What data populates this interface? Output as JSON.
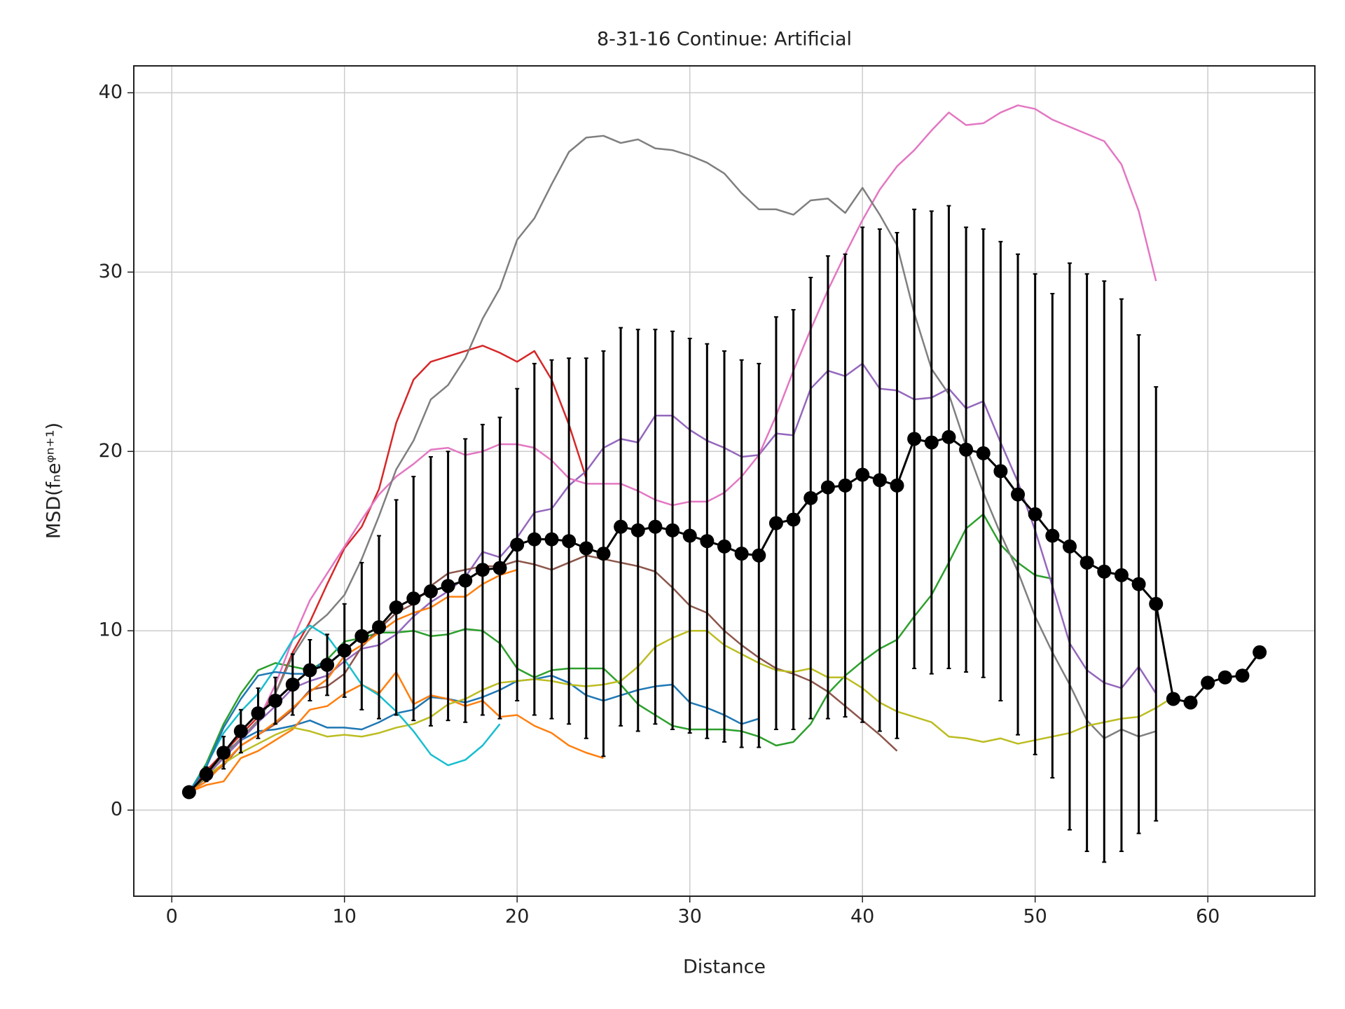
{
  "chart_data": {
    "type": "line",
    "title": "8-31-16 Continue: Artificial",
    "x_label": "Distance",
    "y_label": "MSD(fₙeᵠⁿ⁺¹)",
    "xlim": [
      -2.2,
      66.2
    ],
    "ylim": [
      -4.8,
      41.5
    ],
    "xticks": [
      0,
      10,
      20,
      30,
      40,
      50,
      60
    ],
    "yticks": [
      0,
      10,
      20,
      30,
      40
    ],
    "grid": true,
    "x": [
      1,
      2,
      3,
      4,
      5,
      6,
      7,
      8,
      9,
      10,
      11,
      12,
      13,
      14,
      15,
      16,
      17,
      18,
      19,
      20,
      21,
      22,
      23,
      24,
      25,
      26,
      27,
      28,
      29,
      30,
      31,
      32,
      33,
      34,
      35,
      36,
      37,
      38,
      39,
      40,
      41,
      42,
      43,
      44,
      45,
      46,
      47,
      48,
      49,
      50,
      51,
      52,
      53,
      54,
      55,
      56,
      57,
      58,
      59,
      60,
      61,
      62,
      63
    ],
    "series": [
      {
        "color": "#1f77b4",
        "values": [
          1.0,
          2.2,
          3.2,
          3.9,
          4.4,
          4.5,
          4.7,
          5.0,
          4.6,
          4.6,
          4.5,
          4.9,
          5.4,
          5.6,
          6.3,
          6.2,
          6.0,
          6.3,
          6.7,
          7.2,
          7.3,
          7.5,
          7.1,
          6.4,
          6.1,
          6.4,
          6.7,
          6.9,
          7.0,
          6.0,
          5.7,
          5.3,
          4.8,
          5.1,
          null,
          null,
          null,
          null,
          null,
          null,
          null,
          null,
          null,
          null,
          null,
          null,
          null,
          null,
          null,
          null,
          null,
          null,
          null,
          null,
          null,
          null,
          null,
          null,
          null,
          null,
          null,
          null,
          null
        ]
      },
      {
        "color": "#ff7f0e",
        "values": [
          1.0,
          1.4,
          1.6,
          2.9,
          3.3,
          3.9,
          4.5,
          5.6,
          5.8,
          6.5,
          7.0,
          6.5,
          7.7,
          5.9,
          6.4,
          6.2,
          5.8,
          6.1,
          5.2,
          5.3,
          4.7,
          4.3,
          3.6,
          3.2,
          2.9,
          null,
          null,
          null,
          null,
          null,
          null,
          null,
          null,
          null,
          null,
          null,
          null,
          null,
          null,
          null,
          null,
          null,
          null,
          null,
          null,
          null,
          null,
          null,
          null,
          null,
          null,
          null,
          null,
          null,
          null,
          null,
          null,
          null,
          null,
          null,
          null,
          null,
          null
        ]
      },
      {
        "color": "#2ca02c",
        "values": [
          1.0,
          2.6,
          4.8,
          6.5,
          7.8,
          8.2,
          8.0,
          7.8,
          8.4,
          9.4,
          9.6,
          9.9,
          9.9,
          10.0,
          9.7,
          9.8,
          10.1,
          10.0,
          9.3,
          7.9,
          7.4,
          7.8,
          7.9,
          7.9,
          7.9,
          7.0,
          5.9,
          5.3,
          4.7,
          4.5,
          4.5,
          4.5,
          4.4,
          4.1,
          3.6,
          3.8,
          4.8,
          6.5,
          7.5,
          8.3,
          9.0,
          9.5,
          10.8,
          12.0,
          13.8,
          15.7,
          16.5,
          14.8,
          13.8,
          13.1,
          12.9,
          null,
          null,
          null,
          null,
          null,
          null,
          null,
          null,
          null,
          null,
          null,
          null
        ]
      },
      {
        "color": "#d62728",
        "values": [
          1.0,
          2.2,
          3.2,
          4.2,
          5.2,
          6.5,
          8.8,
          10.5,
          12.6,
          14.6,
          15.8,
          17.9,
          21.6,
          24.0,
          25.0,
          25.3,
          25.6,
          25.9,
          25.5,
          25.0,
          25.6,
          24.0,
          21.5,
          18.5,
          null,
          null,
          null,
          null,
          null,
          null,
          null,
          null,
          null,
          null,
          null,
          null,
          null,
          null,
          null,
          null,
          null,
          null,
          null,
          null,
          null,
          null,
          null,
          null,
          null,
          null,
          null,
          null,
          null,
          null,
          null,
          null,
          null,
          null,
          null,
          null,
          null,
          null,
          null
        ]
      },
      {
        "color": "#9467bd",
        "values": [
          1.0,
          1.9,
          2.9,
          3.9,
          4.9,
          5.8,
          6.8,
          7.2,
          7.5,
          8.3,
          9.0,
          9.2,
          9.8,
          10.8,
          11.6,
          12.2,
          13.0,
          14.4,
          14.1,
          15.2,
          16.6,
          16.8,
          18.1,
          18.9,
          20.2,
          20.7,
          20.5,
          22.0,
          22.0,
          21.2,
          20.6,
          20.2,
          19.7,
          19.8,
          21.0,
          20.9,
          23.5,
          24.5,
          24.2,
          24.9,
          23.5,
          23.4,
          22.9,
          23.0,
          23.5,
          22.4,
          22.8,
          20.5,
          18.3,
          15.6,
          12.5,
          9.3,
          7.8,
          7.1,
          6.8,
          8.0,
          6.5,
          null,
          null,
          null,
          null,
          null,
          null
        ]
      },
      {
        "color": "#8c564b",
        "values": [
          1.0,
          1.8,
          2.5,
          3.6,
          4.2,
          4.8,
          5.6,
          6.7,
          6.9,
          7.6,
          9.1,
          10.1,
          11.0,
          11.5,
          12.5,
          13.2,
          13.4,
          13.6,
          13.6,
          13.9,
          13.7,
          13.4,
          13.8,
          14.2,
          14.0,
          13.8,
          13.6,
          13.3,
          12.4,
          11.4,
          11.0,
          10.0,
          9.2,
          8.5,
          7.9,
          7.6,
          7.2,
          6.6,
          5.8,
          5.0,
          4.2,
          3.3,
          null,
          null,
          null,
          null,
          null,
          null,
          null,
          null,
          null,
          null,
          null,
          null,
          null,
          null,
          null,
          null,
          null,
          null,
          null,
          null,
          null
        ]
      },
      {
        "color": "#e377c2",
        "values": [
          1.0,
          2.0,
          3.0,
          4.0,
          5.0,
          7.0,
          9.5,
          11.7,
          13.2,
          14.7,
          16.2,
          17.6,
          18.6,
          19.3,
          20.1,
          20.2,
          19.8,
          20.0,
          20.4,
          20.4,
          20.2,
          19.5,
          18.5,
          18.2,
          18.2,
          18.2,
          17.8,
          17.3,
          17.0,
          17.2,
          17.2,
          17.7,
          18.6,
          19.8,
          22.0,
          24.5,
          26.8,
          29.0,
          31.0,
          32.9,
          34.6,
          35.9,
          36.8,
          37.9,
          38.9,
          38.2,
          38.3,
          38.9,
          39.3,
          39.1,
          38.5,
          38.1,
          37.7,
          37.3,
          36.0,
          33.4,
          29.5,
          null,
          null,
          null,
          null,
          null,
          null
        ]
      },
      {
        "color": "#7f7f7f",
        "values": [
          1.0,
          2.0,
          3.0,
          4.0,
          5.0,
          6.5,
          8.6,
          10.1,
          10.9,
          12.0,
          14.0,
          16.4,
          19.0,
          20.6,
          22.9,
          23.7,
          25.2,
          27.4,
          29.1,
          31.8,
          33.0,
          34.9,
          36.7,
          37.5,
          37.6,
          37.2,
          37.4,
          36.9,
          36.8,
          36.5,
          36.1,
          35.5,
          34.4,
          33.5,
          33.5,
          33.2,
          34.0,
          34.1,
          33.3,
          34.7,
          33.2,
          31.5,
          27.7,
          24.6,
          23.2,
          20.3,
          17.7,
          15.4,
          13.3,
          10.8,
          8.8,
          7.0,
          5.0,
          4.0,
          4.5,
          4.1,
          4.4,
          null,
          null,
          null,
          null,
          null,
          null
        ]
      },
      {
        "color": "#bcbd22",
        "values": [
          1.0,
          1.9,
          2.6,
          3.2,
          3.7,
          4.2,
          4.6,
          4.4,
          4.1,
          4.2,
          4.1,
          4.3,
          4.6,
          4.8,
          5.2,
          5.9,
          6.2,
          6.7,
          7.1,
          7.2,
          7.3,
          7.2,
          7.0,
          6.9,
          7.0,
          7.2,
          8.0,
          9.1,
          9.6,
          10.0,
          10.0,
          9.2,
          8.7,
          8.2,
          7.8,
          7.7,
          7.9,
          7.4,
          7.4,
          6.8,
          6.0,
          5.5,
          5.2,
          4.9,
          4.1,
          4.0,
          3.8,
          4.0,
          3.7,
          3.9,
          4.1,
          4.3,
          4.7,
          4.9,
          5.1,
          5.2,
          5.7,
          6.3,
          null,
          null,
          null,
          null,
          null
        ]
      },
      {
        "color": "#17becf",
        "values": [
          1.0,
          2.5,
          4.3,
          5.5,
          6.5,
          7.9,
          9.5,
          10.3,
          9.7,
          8.4,
          7.0,
          6.4,
          5.5,
          4.4,
          3.1,
          2.5,
          2.8,
          3.6,
          4.8,
          null,
          null,
          null,
          null,
          null,
          null,
          null,
          null,
          null,
          null,
          null,
          null,
          null,
          null,
          null,
          null,
          null,
          null,
          null,
          null,
          null,
          null,
          null,
          null,
          null,
          null,
          null,
          null,
          null,
          null,
          null,
          null,
          null,
          null,
          null,
          null,
          null,
          null,
          null,
          null,
          null,
          null,
          null,
          null
        ]
      },
      {
        "color": "#1f77b4",
        "values": [
          1.0,
          2.4,
          4.6,
          6.2,
          7.5,
          7.7,
          7.6,
          7.6,
          8.5,
          null,
          null,
          null,
          null,
          null,
          null,
          null,
          null,
          null,
          null,
          null,
          null,
          null,
          null,
          null,
          null,
          null,
          null,
          null,
          null,
          null,
          null,
          null,
          null,
          null,
          null,
          null,
          null,
          null,
          null,
          null,
          null,
          null,
          null,
          null,
          null,
          null,
          null,
          null,
          null,
          null,
          null,
          null,
          null,
          null,
          null,
          null,
          null,
          null,
          null,
          null,
          null,
          null,
          null
        ]
      },
      {
        "color": "#ff7f0e",
        "values": [
          1.0,
          1.6,
          2.6,
          3.6,
          4.2,
          4.9,
          5.7,
          6.6,
          7.3,
          8.6,
          9.2,
          9.9,
          10.6,
          11.0,
          11.3,
          11.9,
          11.9,
          12.6,
          13.1,
          13.4,
          null,
          null,
          null,
          null,
          null,
          null,
          null,
          null,
          null,
          null,
          null,
          null,
          null,
          null,
          null,
          null,
          null,
          null,
          null,
          null,
          null,
          null,
          null,
          null,
          null,
          null,
          null,
          null,
          null,
          null,
          null,
          null,
          null,
          null,
          null,
          null,
          null,
          null,
          null,
          null,
          null,
          null,
          null
        ]
      },
      {
        "color": "#000000",
        "marker": true,
        "values": [
          1.0,
          2.0,
          3.2,
          4.4,
          5.4,
          6.1,
          7.0,
          7.8,
          8.1,
          8.9,
          9.7,
          10.2,
          11.3,
          11.8,
          12.2,
          12.5,
          12.8,
          13.4,
          13.5,
          14.8,
          15.1,
          15.1,
          15.0,
          14.6,
          14.3,
          15.8,
          15.6,
          15.8,
          15.6,
          15.3,
          15.0,
          14.7,
          14.3,
          14.2,
          16.0,
          16.2,
          17.4,
          18.0,
          18.1,
          18.7,
          18.4,
          18.1,
          20.7,
          20.5,
          20.8,
          20.1,
          19.9,
          18.9,
          17.6,
          16.5,
          15.3,
          14.7,
          13.8,
          13.3,
          13.1,
          12.6,
          11.5,
          6.2,
          6.0,
          7.1,
          7.4,
          7.5,
          8.8
        ],
        "errors": [
          null,
          0.4,
          0.9,
          1.2,
          1.4,
          1.3,
          1.7,
          1.7,
          1.7,
          2.6,
          4.1,
          5.1,
          6.0,
          6.8,
          7.5,
          7.5,
          7.9,
          8.1,
          8.4,
          8.7,
          9.8,
          10.0,
          10.2,
          10.6,
          11.3,
          11.1,
          11.2,
          11.0,
          11.1,
          11.0,
          11.0,
          10.9,
          10.8,
          10.7,
          11.5,
          11.7,
          12.3,
          12.9,
          12.9,
          13.8,
          14.0,
          14.1,
          12.8,
          12.9,
          12.9,
          12.4,
          12.5,
          12.8,
          13.4,
          13.4,
          13.5,
          15.8,
          16.1,
          16.2,
          15.4,
          13.9,
          12.1,
          null,
          null,
          null,
          null,
          null,
          null
        ]
      }
    ]
  }
}
